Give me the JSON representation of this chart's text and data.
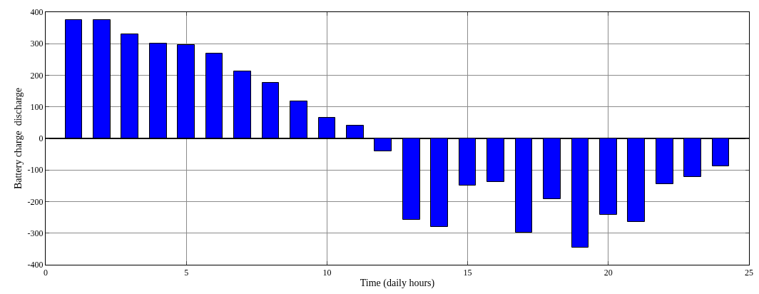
{
  "chart_data": {
    "type": "bar",
    "xlabel": "Time (daily hours)",
    "ylabel": "Battery charge  discharge",
    "x": [
      1,
      2,
      3,
      4,
      5,
      6,
      7,
      8,
      9,
      10,
      11,
      12,
      13,
      14,
      15,
      16,
      17,
      18,
      19,
      20,
      21,
      22,
      23,
      24
    ],
    "series": [
      {
        "color": "#0000ff",
        "values": [
          375,
          375,
          330,
          300,
          296,
          270,
          212,
          176,
          118,
          66,
          41,
          -41,
          -258,
          -281,
          -150,
          -138,
          -299,
          -193,
          -345,
          -242,
          -264,
          -145,
          -122,
          -89
        ]
      }
    ],
    "xlim": [
      0,
      25
    ],
    "xticks": [
      0,
      5,
      10,
      15,
      20,
      25
    ],
    "ylim": [
      -400,
      400
    ],
    "yticks": [
      -400,
      -300,
      -200,
      -100,
      0,
      100,
      200,
      300,
      400
    ],
    "grid": true
  }
}
